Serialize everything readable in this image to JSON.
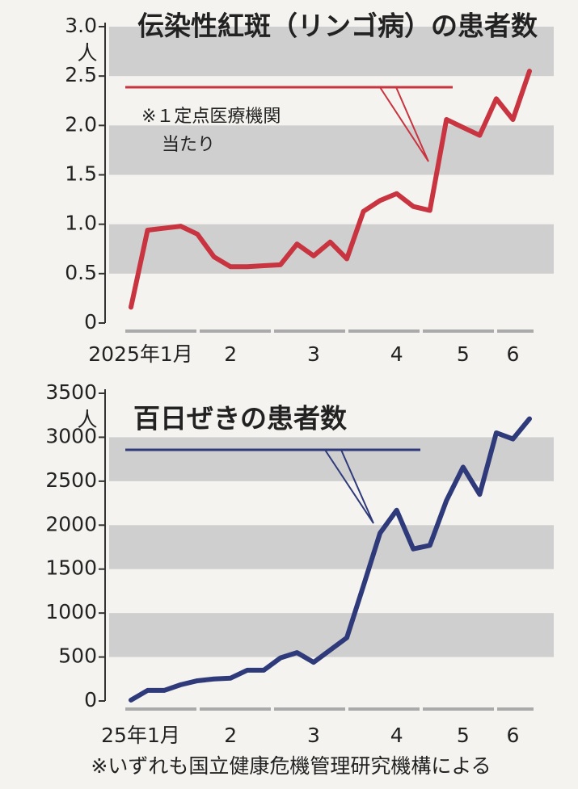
{
  "chart_data": [
    {
      "type": "line",
      "title": "伝染性紅斑（リンゴ病）の患者数",
      "note": [
        "※１定点医療機関",
        "当たり"
      ],
      "y_unit": "人",
      "categories": [
        "2025年1月",
        null,
        null,
        null,
        null,
        null,
        "2",
        null,
        null,
        null,
        null,
        "3",
        null,
        null,
        null,
        null,
        "4",
        null,
        null,
        null,
        "5",
        null,
        null,
        "6",
        null
      ],
      "series": [
        {
          "name": "伝染性紅斑",
          "color": "#c8343f",
          "values": [
            0.16,
            0.94,
            0.96,
            0.98,
            0.9,
            0.67,
            0.57,
            0.57,
            0.58,
            0.59,
            0.8,
            0.68,
            0.82,
            0.65,
            1.13,
            1.24,
            1.31,
            1.18,
            1.14,
            2.06,
            1.98,
            1.9,
            2.27,
            2.06,
            2.55
          ]
        }
      ],
      "ylim": [
        0,
        3
      ],
      "yticks": [
        0,
        0.5,
        {
          "value": 1,
          "label": "1.0"
        },
        1.5,
        {
          "value": 2,
          "label": "2.0"
        },
        2.5,
        {
          "value": 3,
          "label": "3.0"
        }
      ],
      "grid": "bands"
    },
    {
      "type": "line",
      "title": "百日ぜきの患者数",
      "y_unit": "人",
      "categories": [
        "25年1月",
        null,
        null,
        null,
        null,
        null,
        "2",
        null,
        null,
        null,
        null,
        "3",
        null,
        null,
        null,
        null,
        "4",
        null,
        null,
        null,
        "5",
        null,
        null,
        "6",
        null
      ],
      "series": [
        {
          "name": "百日ぜき",
          "color": "#2e3a7a",
          "values": [
            10,
            120,
            120,
            185,
            230,
            250,
            260,
            350,
            350,
            490,
            550,
            440,
            580,
            720,
            1310,
            1910,
            2170,
            1730,
            1770,
            2280,
            2660,
            2350,
            3050,
            2980,
            3210
          ]
        }
      ],
      "ylim": [
        0,
        3500
      ],
      "yticks": [
        0,
        500,
        1000,
        1500,
        2000,
        2500,
        3000,
        3500
      ],
      "grid": "bands"
    }
  ],
  "footnote": "※いずれも国立健康危機管理研究機構による"
}
